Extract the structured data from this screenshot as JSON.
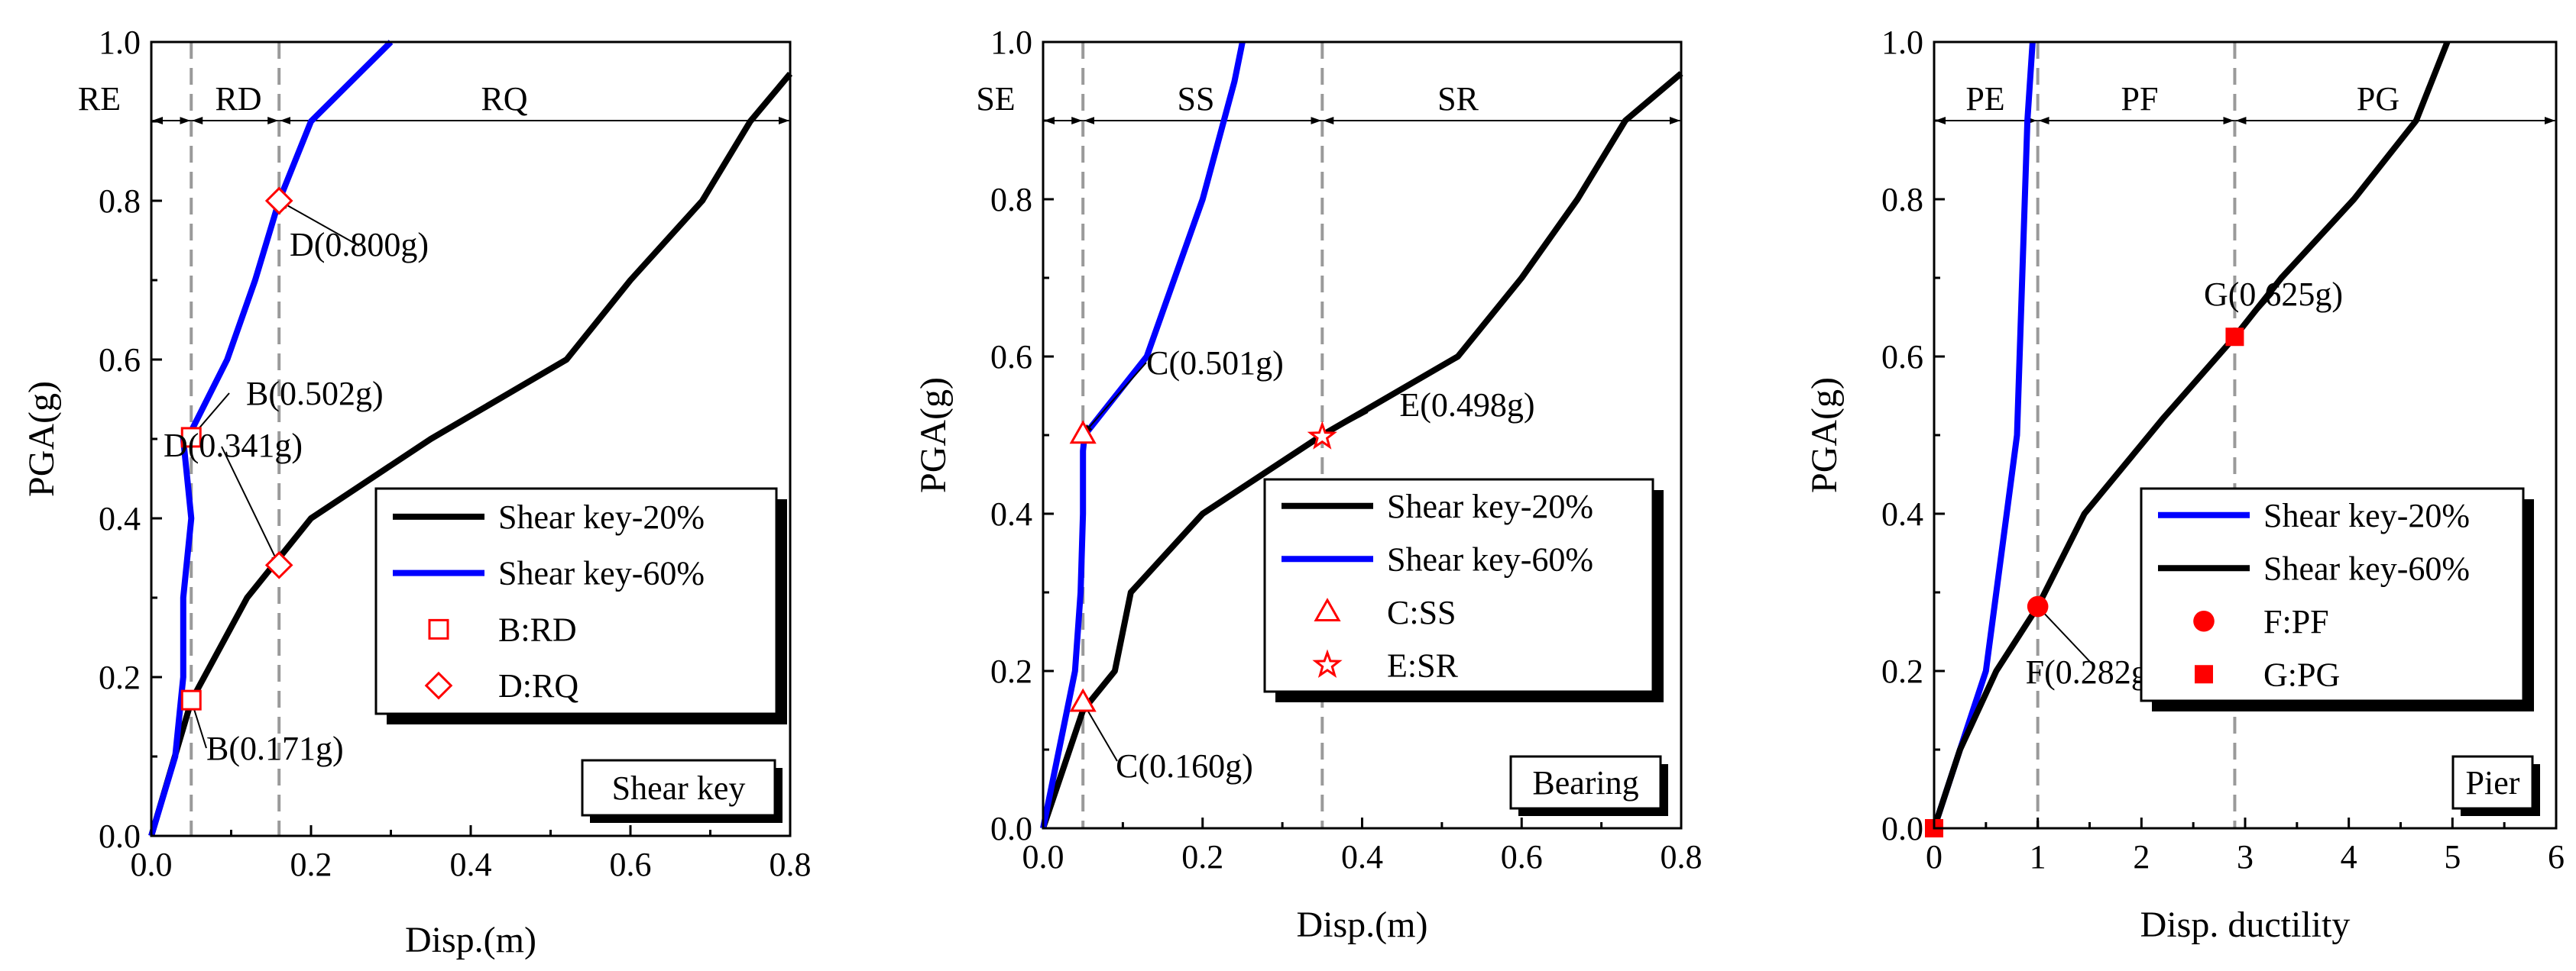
{
  "chart_data": [
    {
      "type": "line",
      "panel_label": "Shear key",
      "xlabel": "Disp.(m)",
      "ylabel": "PGA(g)",
      "xlim": [
        0,
        0.8
      ],
      "ylim": [
        0,
        1.0
      ],
      "xticks": [
        "0.0",
        "0.2",
        "0.4",
        "0.6",
        "0.8"
      ],
      "yticks": [
        "0.0",
        "0.2",
        "0.4",
        "0.6",
        "0.8",
        "1.0"
      ],
      "thresholds": [
        0.05,
        0.16
      ],
      "regions": [
        "RE",
        "RD",
        "RQ"
      ],
      "series": [
        {
          "name": "Shear key-20%",
          "color": "#000000",
          "x": [
            0,
            0.05,
            0.12,
            0.2,
            0.35,
            0.52,
            0.6,
            0.69,
            0.75,
            0.8
          ],
          "y": [
            0,
            0.17,
            0.3,
            0.4,
            0.5,
            0.6,
            0.7,
            0.8,
            0.9,
            0.96
          ]
        },
        {
          "name": "Shear key-60%",
          "color": "#0000ff",
          "x": [
            0,
            0.03,
            0.04,
            0.04,
            0.05,
            0.04,
            0.05,
            0.095,
            0.13,
            0.16,
            0.2,
            0.3
          ],
          "y": [
            0,
            0.1,
            0.2,
            0.3,
            0.4,
            0.5,
            0.51,
            0.6,
            0.7,
            0.8,
            0.9,
            1.0
          ]
        }
      ],
      "markers": [
        {
          "legend": "B:RD",
          "symbol": "square"
        },
        {
          "legend": "D:RQ",
          "symbol": "diamond"
        }
      ],
      "points": [
        {
          "label": "B(0.171g)",
          "symbol": "square",
          "x": 0.05,
          "y": 0.171
        },
        {
          "label": "B(0.502g)",
          "symbol": "square",
          "x": 0.05,
          "y": 0.502
        },
        {
          "label": "D(0.341g)",
          "symbol": "diamond",
          "x": 0.16,
          "y": 0.341
        },
        {
          "label": "D(0.800g)",
          "symbol": "diamond",
          "x": 0.16,
          "y": 0.8
        }
      ]
    },
    {
      "type": "line",
      "panel_label": "Bearing",
      "xlabel": "Disp.(m)",
      "ylabel": "PGA(g)",
      "xlim": [
        0,
        0.8
      ],
      "ylim": [
        0,
        1.0
      ],
      "xticks": [
        "0.0",
        "0.2",
        "0.4",
        "0.6",
        "0.8"
      ],
      "yticks": [
        "0.0",
        "0.2",
        "0.4",
        "0.6",
        "0.8",
        "1.0"
      ],
      "thresholds": [
        0.05,
        0.35
      ],
      "regions": [
        "SE",
        "SS",
        "SR"
      ],
      "series": [
        {
          "name": "Shear key-20%",
          "color": "#000000",
          "x": [
            0,
            0.05,
            0.09,
            0.11,
            0.2,
            0.35,
            0.52,
            0.6,
            0.67,
            0.73,
            0.8
          ],
          "y": [
            0,
            0.15,
            0.2,
            0.3,
            0.4,
            0.5,
            0.6,
            0.7,
            0.8,
            0.9,
            0.96
          ]
        },
        {
          "name": "Shear key-60%",
          "color": "#0000ff",
          "x": [
            0,
            0.04,
            0.047,
            0.05,
            0.05,
            0.052,
            0.13,
            0.2,
            0.24,
            0.25
          ],
          "y": [
            0,
            0.2,
            0.3,
            0.4,
            0.48,
            0.5,
            0.6,
            0.8,
            0.95,
            1.0
          ]
        }
      ],
      "markers": [
        {
          "legend": "C:SS",
          "symbol": "triangle"
        },
        {
          "legend": "E:SR",
          "symbol": "star"
        }
      ],
      "points": [
        {
          "label": "C(0.160g)",
          "symbol": "triangle",
          "x": 0.05,
          "y": 0.16
        },
        {
          "label": "C(0.501g)",
          "symbol": "triangle",
          "x": 0.05,
          "y": 0.501
        },
        {
          "label": "E(0.498g)",
          "symbol": "star",
          "x": 0.35,
          "y": 0.498
        }
      ]
    },
    {
      "type": "line",
      "panel_label": "Pier",
      "xlabel": "Disp. ductility",
      "ylabel": "PGA(g)",
      "xlim": [
        0,
        6
      ],
      "ylim": [
        0,
        1.0
      ],
      "xticks": [
        "0",
        "1",
        "2",
        "3",
        "4",
        "5",
        "6"
      ],
      "yticks": [
        "0.0",
        "0.2",
        "0.4",
        "0.6",
        "0.8",
        "1.0"
      ],
      "thresholds": [
        1,
        2.9
      ],
      "regions": [
        "PE",
        "PF",
        "PG"
      ],
      "series": [
        {
          "name": "Shear key-20%",
          "color": "#0000ff",
          "x": [
            0,
            0.25,
            0.5,
            0.7,
            0.8,
            0.85,
            0.9,
            0.95
          ],
          "y": [
            0,
            0.1,
            0.2,
            0.4,
            0.5,
            0.7,
            0.9,
            1.0
          ]
        },
        {
          "name": "Shear key-60%",
          "color": "#000000",
          "x": [
            0,
            0.25,
            0.6,
            1.0,
            1.45,
            2.2,
            2.9,
            3.35,
            4.05,
            4.65,
            4.95
          ],
          "y": [
            0,
            0.1,
            0.2,
            0.282,
            0.4,
            0.52,
            0.625,
            0.7,
            0.8,
            0.9,
            1.0
          ]
        }
      ],
      "markers": [
        {
          "legend": "F:PF",
          "symbol": "circle"
        },
        {
          "legend": "G:PG",
          "symbol": "filled-square"
        }
      ],
      "points": [
        {
          "label": "F(0.282g)",
          "symbol": "circle",
          "x": 1.0,
          "y": 0.282
        },
        {
          "label": "G(0.625g)",
          "symbol": "filled-square",
          "x": 2.9,
          "y": 0.625
        },
        {
          "label": "",
          "symbol": "filled-square",
          "x": 0.0,
          "y": 0.0
        }
      ]
    }
  ]
}
